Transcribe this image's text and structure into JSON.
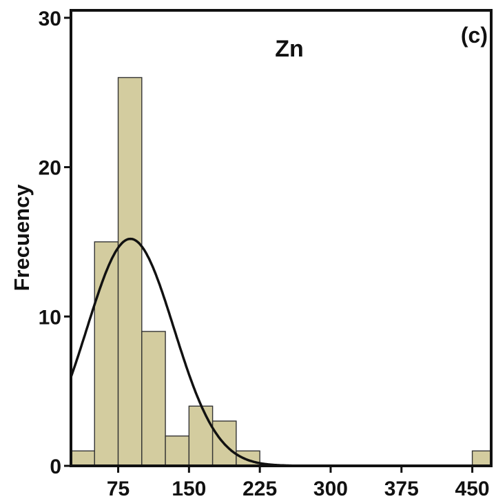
{
  "colors": {
    "bar_fill": "#d3cc9f",
    "curve": "#111111",
    "frame": "#111111"
  },
  "chart_data": {
    "type": "bar",
    "title": "Zn",
    "panel_label": "(c)",
    "xlabel": "",
    "ylabel": "Frecuency",
    "xlim": [
      25,
      470
    ],
    "ylim": [
      0,
      30.5
    ],
    "xticks": [
      75,
      150,
      225,
      300,
      375,
      450
    ],
    "yticks": [
      0,
      10,
      20,
      30
    ],
    "grid": false,
    "bins": [
      {
        "x0": 25,
        "x1": 50,
        "value": 1
      },
      {
        "x0": 50,
        "x1": 75,
        "value": 15
      },
      {
        "x0": 75,
        "x1": 100,
        "value": 26
      },
      {
        "x0": 100,
        "x1": 125,
        "value": 9
      },
      {
        "x0": 125,
        "x1": 150,
        "value": 2
      },
      {
        "x0": 150,
        "x1": 175,
        "value": 4
      },
      {
        "x0": 175,
        "x1": 200,
        "value": 3
      },
      {
        "x0": 200,
        "x1": 225,
        "value": 1
      },
      {
        "x0": 450,
        "x1": 475,
        "value": 1
      }
    ],
    "normal_curve": {
      "mean": 88,
      "sd": 46,
      "peak": 15.2
    }
  }
}
